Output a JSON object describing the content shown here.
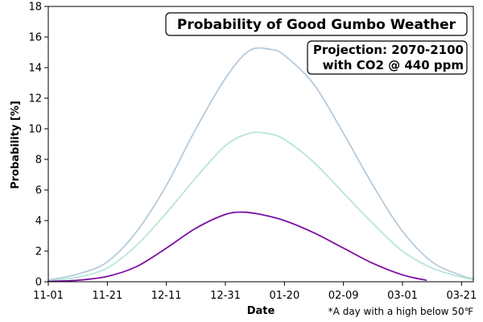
{
  "chart_data": {
    "type": "line",
    "title": "Probability of Good Gumbo Weather",
    "annotation_lines": [
      "Projection: 2070-2100",
      "with CO2 @ 440 ppm"
    ],
    "xlabel": "Date",
    "ylabel": "Probability [%]",
    "footnote": "*A day with a high below 50℉",
    "x_ticks": [
      "11-01",
      "11-21",
      "12-11",
      "12-31",
      "01-20",
      "02-09",
      "03-01",
      "03-21"
    ],
    "xlim": [
      "11-01",
      "03-25"
    ],
    "ylim": [
      0,
      18
    ],
    "y_ticks": [
      0,
      2,
      4,
      6,
      8,
      10,
      12,
      14,
      16,
      18
    ],
    "grid": false,
    "series": [
      {
        "color": "#b7cadb",
        "x": [
          "11-01",
          "11-11",
          "11-21",
          "12-01",
          "12-11",
          "12-21",
          "12-31",
          "01-08",
          "01-15",
          "01-20",
          "01-30",
          "02-09",
          "02-19",
          "03-01",
          "03-11",
          "03-21",
          "03-25"
        ],
        "y": [
          0.1,
          0.5,
          1.3,
          3.3,
          6.3,
          10.0,
          13.3,
          15.1,
          15.2,
          14.8,
          12.9,
          9.7,
          6.3,
          3.3,
          1.3,
          0.4,
          0.2
        ]
      },
      {
        "color": "#b7e6d6",
        "x": [
          "11-01",
          "11-11",
          "11-21",
          "12-01",
          "12-11",
          "12-21",
          "12-31",
          "01-08",
          "01-14",
          "01-20",
          "01-30",
          "02-09",
          "02-19",
          "03-01",
          "03-11",
          "03-21",
          "03-25"
        ],
        "y": [
          0.05,
          0.3,
          0.9,
          2.4,
          4.5,
          6.8,
          8.9,
          9.7,
          9.7,
          9.3,
          7.8,
          5.8,
          3.8,
          2.0,
          0.9,
          0.3,
          0.15
        ]
      },
      {
        "color": "#7b0ea3",
        "x": [
          "11-01",
          "11-11",
          "11-21",
          "12-01",
          "12-11",
          "12-21",
          "12-31",
          "01-06",
          "01-12",
          "01-20",
          "01-30",
          "02-09",
          "02-19",
          "03-01",
          "03-09"
        ],
        "y": [
          0.02,
          0.1,
          0.35,
          1.0,
          2.2,
          3.5,
          4.4,
          4.55,
          4.4,
          4.0,
          3.2,
          2.2,
          1.2,
          0.45,
          0.1
        ]
      }
    ]
  }
}
